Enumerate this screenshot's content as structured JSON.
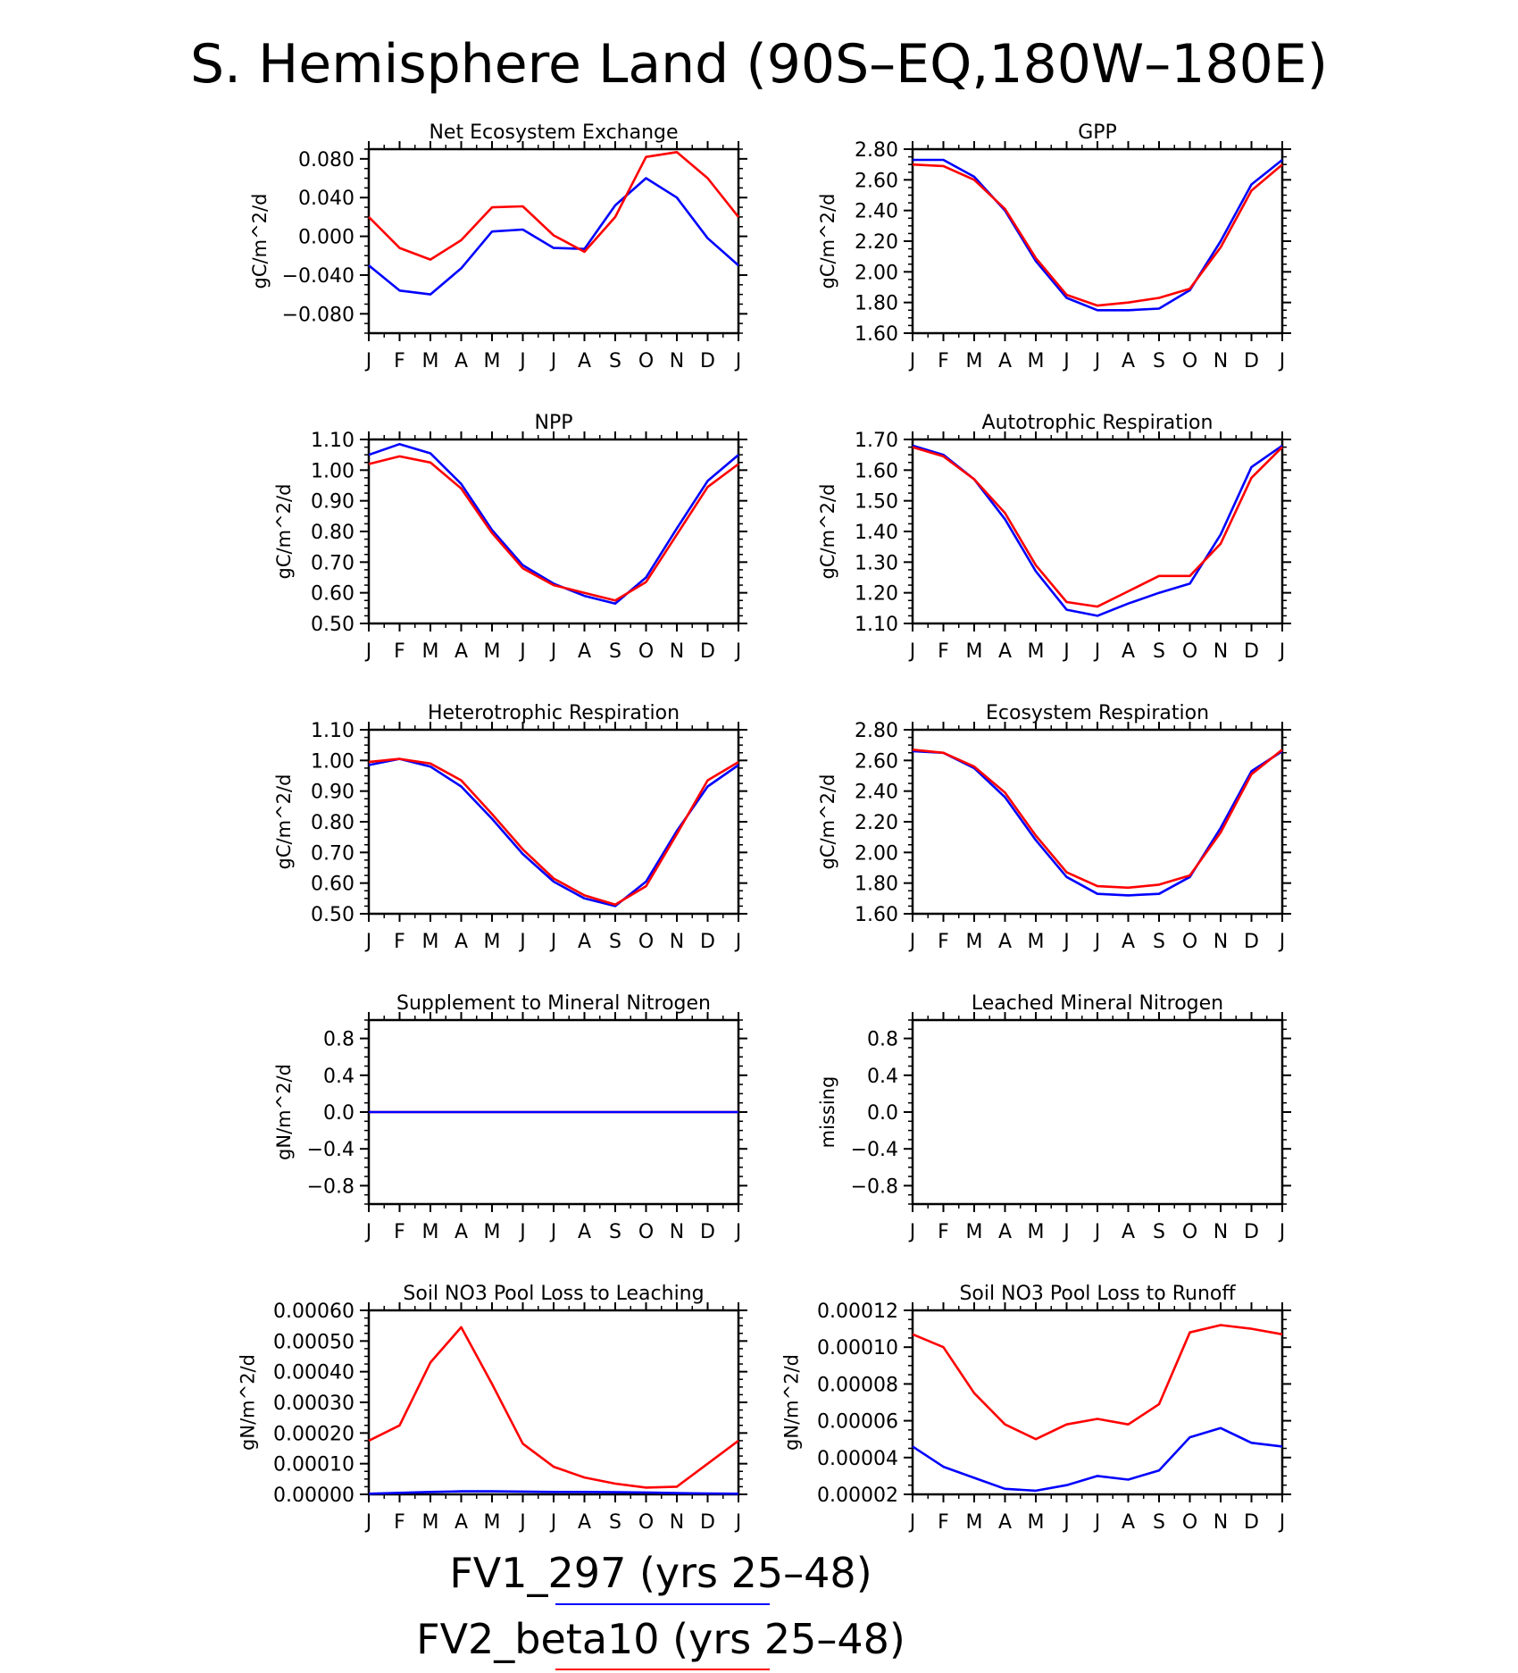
{
  "title": "S. Hemisphere Land (90S–EQ,180W–180E)",
  "months": [
    "J",
    "F",
    "M",
    "A",
    "M",
    "J",
    "J",
    "A",
    "S",
    "O",
    "N",
    "D",
    "J"
  ],
  "colors": {
    "FV1_297": "#0000ff",
    "FV2_beta10": "#ff0000"
  },
  "legend": [
    {
      "label": "FV1_297 (yrs 25–48)",
      "color": "#0000ff"
    },
    {
      "label": "FV2_beta10 (yrs 25–48)",
      "color": "#ff0000"
    }
  ],
  "chart_data": [
    {
      "type": "line",
      "title": "Net Ecosystem Exchange",
      "ylabel": "gC/m^2/d",
      "ylim": [
        -0.1,
        0.09
      ],
      "yticks": [
        -0.08,
        -0.04,
        0.0,
        0.04,
        0.08
      ],
      "ytick_labels": [
        "−0.080",
        "−0.040",
        "0.000",
        "0.040",
        "0.080"
      ],
      "series": [
        {
          "name": "FV1_297",
          "values": [
            -0.03,
            -0.056,
            -0.06,
            -0.033,
            0.005,
            0.007,
            -0.012,
            -0.013,
            0.032,
            0.06,
            0.04,
            -0.002,
            -0.03
          ]
        },
        {
          "name": "FV2_beta10",
          "values": [
            0.02,
            -0.012,
            -0.024,
            -0.004,
            0.03,
            0.031,
            0.001,
            -0.016,
            0.02,
            0.082,
            0.087,
            0.06,
            0.02
          ]
        }
      ]
    },
    {
      "type": "line",
      "title": "GPP",
      "ylabel": "gC/m^2/d",
      "ylim": [
        1.6,
        2.8
      ],
      "yticks": [
        1.6,
        1.8,
        2.0,
        2.2,
        2.4,
        2.6,
        2.8
      ],
      "ytick_labels": [
        "1.60",
        "1.80",
        "2.00",
        "2.20",
        "2.40",
        "2.60",
        "2.80"
      ],
      "series": [
        {
          "name": "FV1_297",
          "values": [
            2.73,
            2.73,
            2.62,
            2.4,
            2.07,
            1.83,
            1.75,
            1.75,
            1.76,
            1.88,
            2.2,
            2.57,
            2.73
          ]
        },
        {
          "name": "FV2_beta10",
          "values": [
            2.7,
            2.69,
            2.6,
            2.41,
            2.09,
            1.85,
            1.78,
            1.8,
            1.83,
            1.89,
            2.16,
            2.53,
            2.7
          ]
        }
      ]
    },
    {
      "type": "line",
      "title": "NPP",
      "ylabel": "gC/m^2/d",
      "ylim": [
        0.5,
        1.1
      ],
      "yticks": [
        0.5,
        0.6,
        0.7,
        0.8,
        0.9,
        1.0,
        1.1
      ],
      "ytick_labels": [
        "0.50",
        "0.60",
        "0.70",
        "0.80",
        "0.90",
        "1.00",
        "1.10"
      ],
      "series": [
        {
          "name": "FV1_297",
          "values": [
            1.05,
            1.085,
            1.055,
            0.955,
            0.805,
            0.69,
            0.63,
            0.59,
            0.565,
            0.65,
            0.81,
            0.965,
            1.05
          ]
        },
        {
          "name": "FV2_beta10",
          "values": [
            1.02,
            1.045,
            1.025,
            0.94,
            0.795,
            0.68,
            0.625,
            0.6,
            0.575,
            0.635,
            0.79,
            0.945,
            1.02
          ]
        }
      ]
    },
    {
      "type": "line",
      "title": "Autotrophic Respiration",
      "ylabel": "gC/m^2/d",
      "ylim": [
        1.1,
        1.7
      ],
      "yticks": [
        1.1,
        1.2,
        1.3,
        1.4,
        1.5,
        1.6,
        1.7
      ],
      "ytick_labels": [
        "1.10",
        "1.20",
        "1.30",
        "1.40",
        "1.50",
        "1.60",
        "1.70"
      ],
      "series": [
        {
          "name": "FV1_297",
          "values": [
            1.68,
            1.65,
            1.57,
            1.44,
            1.27,
            1.145,
            1.125,
            1.165,
            1.2,
            1.23,
            1.39,
            1.61,
            1.68
          ]
        },
        {
          "name": "FV2_beta10",
          "values": [
            1.675,
            1.645,
            1.57,
            1.46,
            1.29,
            1.17,
            1.155,
            1.205,
            1.255,
            1.255,
            1.36,
            1.575,
            1.675
          ]
        }
      ]
    },
    {
      "type": "line",
      "title": "Heterotrophic Respiration",
      "ylabel": "gC/m^2/d",
      "ylim": [
        0.5,
        1.1
      ],
      "yticks": [
        0.5,
        0.6,
        0.7,
        0.8,
        0.9,
        1.0,
        1.1
      ],
      "ytick_labels": [
        "0.50",
        "0.60",
        "0.70",
        "0.80",
        "0.90",
        "1.00",
        "1.10"
      ],
      "series": [
        {
          "name": "FV1_297",
          "values": [
            0.985,
            1.005,
            0.98,
            0.915,
            0.81,
            0.695,
            0.605,
            0.55,
            0.525,
            0.605,
            0.77,
            0.915,
            0.985
          ]
        },
        {
          "name": "FV2_beta10",
          "values": [
            0.995,
            1.005,
            0.99,
            0.935,
            0.825,
            0.71,
            0.615,
            0.56,
            0.53,
            0.59,
            0.76,
            0.935,
            0.995
          ]
        }
      ]
    },
    {
      "type": "line",
      "title": "Ecosystem Respiration",
      "ylabel": "gC/m^2/d",
      "ylim": [
        1.6,
        2.8
      ],
      "yticks": [
        1.6,
        1.8,
        2.0,
        2.2,
        2.4,
        2.6,
        2.8
      ],
      "ytick_labels": [
        "1.60",
        "1.80",
        "2.00",
        "2.20",
        "2.40",
        "2.60",
        "2.80"
      ],
      "series": [
        {
          "name": "FV1_297",
          "values": [
            2.66,
            2.65,
            2.55,
            2.36,
            2.08,
            1.84,
            1.73,
            1.72,
            1.73,
            1.84,
            2.16,
            2.53,
            2.66
          ]
        },
        {
          "name": "FV2_beta10",
          "values": [
            2.67,
            2.65,
            2.56,
            2.39,
            2.11,
            1.87,
            1.78,
            1.77,
            1.79,
            1.85,
            2.13,
            2.51,
            2.67
          ]
        }
      ]
    },
    {
      "type": "line",
      "title": "Supplement to Mineral Nitrogen",
      "ylabel": "gN/m^2/d",
      "ylim": [
        -1.0,
        1.0
      ],
      "yticks": [
        -0.8,
        -0.4,
        0.0,
        0.4,
        0.8
      ],
      "ytick_labels": [
        "−0.8",
        "−0.4",
        "0.0",
        "0.4",
        "0.8"
      ],
      "series": [
        {
          "name": "FV2_beta10",
          "values": [
            0,
            0,
            0,
            0,
            0,
            0,
            0,
            0,
            0,
            0,
            0,
            0,
            0
          ]
        },
        {
          "name": "FV1_297",
          "values": [
            0,
            0,
            0,
            0,
            0,
            0,
            0,
            0,
            0,
            0,
            0,
            0,
            0
          ]
        }
      ]
    },
    {
      "type": "line",
      "title": "Leached Mineral Nitrogen",
      "ylabel": "missing",
      "ylim": [
        -1.0,
        1.0
      ],
      "yticks": [
        -0.8,
        -0.4,
        0.0,
        0.4,
        0.8
      ],
      "ytick_labels": [
        "−0.8",
        "−0.4",
        "0.0",
        "0.4",
        "0.8"
      ],
      "series": []
    },
    {
      "type": "line",
      "title": "Soil NO3 Pool Loss to Leaching",
      "ylabel": "gN/m^2/d",
      "ylim": [
        0.0,
        0.0006
      ],
      "yticks": [
        0.0,
        0.0001,
        0.0002,
        0.0003,
        0.0004,
        0.0005,
        0.0006
      ],
      "ytick_labels": [
        "0.00000",
        "0.00010",
        "0.00020",
        "0.00030",
        "0.00040",
        "0.00050",
        "0.00060"
      ],
      "series": [
        {
          "name": "FV2_beta10",
          "values": [
            0.000175,
            0.000225,
            0.00043,
            0.000545,
            0.00036,
            0.000165,
            9e-05,
            5.5e-05,
            3.5e-05,
            2.2e-05,
            2.5e-05,
            0.0001,
            0.000175
          ]
        },
        {
          "name": "FV1_297",
          "values": [
            2e-06,
            5e-06,
            8e-06,
            1e-05,
            1e-05,
            9e-06,
            8e-06,
            8e-06,
            7e-06,
            6e-06,
            4e-06,
            3e-06,
            2e-06
          ]
        }
      ]
    },
    {
      "type": "line",
      "title": "Soil NO3 Pool Loss to Runoff",
      "ylabel": "gN/m^2/d",
      "ylim": [
        2e-05,
        0.00012
      ],
      "yticks": [
        2e-05,
        4e-05,
        6e-05,
        8e-05,
        0.0001,
        0.00012
      ],
      "ytick_labels": [
        "0.00002",
        "0.00004",
        "0.00006",
        "0.00008",
        "0.00010",
        "0.00012"
      ],
      "series": [
        {
          "name": "FV2_beta10",
          "values": [
            0.000107,
            0.0001,
            7.5e-05,
            5.8e-05,
            5e-05,
            5.8e-05,
            6.1e-05,
            5.8e-05,
            6.9e-05,
            0.000108,
            0.000112,
            0.00011,
            0.000107
          ]
        },
        {
          "name": "FV1_297",
          "values": [
            4.6e-05,
            3.5e-05,
            2.9e-05,
            2.3e-05,
            2.2e-05,
            2.5e-05,
            3e-05,
            2.8e-05,
            3.3e-05,
            5.1e-05,
            5.6e-05,
            4.8e-05,
            4.6e-05
          ]
        }
      ]
    }
  ]
}
